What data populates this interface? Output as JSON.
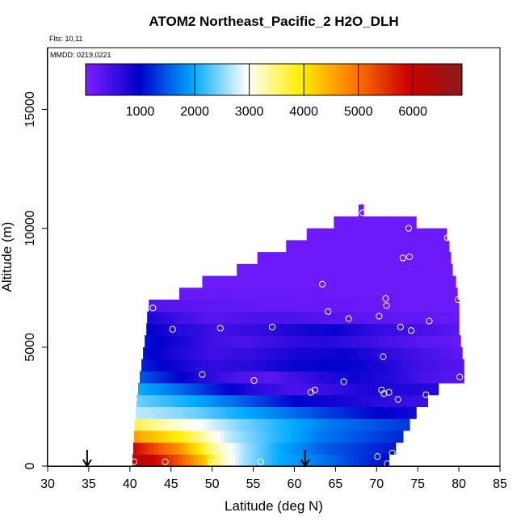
{
  "chart_data": {
    "type": "heatmap",
    "title": "ATOM2 Northeast_Pacific_2 H2O_DLH",
    "flights_text": "Flts: 10,11",
    "dates_text": "MMDD: 0219,0221",
    "xlabel": "Latitude (deg N)",
    "ylabel": "Altitude (m)",
    "xlim": [
      30,
      85
    ],
    "ylim": [
      0,
      17600
    ],
    "x_ticks": [
      "30",
      "35",
      "40",
      "45",
      "50",
      "55",
      "60",
      "65",
      "70",
      "75",
      "80",
      "85"
    ],
    "x_tick_values": [
      30,
      35,
      40,
      45,
      50,
      55,
      60,
      65,
      70,
      75,
      80,
      85
    ],
    "y_ticks": [
      "0",
      "5000",
      "10000",
      "15000"
    ],
    "y_tick_values": [
      0,
      5000,
      10000,
      15000
    ],
    "colorbar": {
      "min": 0,
      "max": 6900,
      "ticks": [
        "1000",
        "2000",
        "3000",
        "4000",
        "5000",
        "6000"
      ],
      "tick_values": [
        1000,
        2000,
        3000,
        4000,
        5000,
        6000
      ],
      "colors": [
        "#7f1fff",
        "#0000cc",
        "#00aaff",
        "#ffffff",
        "#ffee00",
        "#ff7700",
        "#cc0000",
        "#8b1a1a"
      ]
    },
    "cell_height_m": 500,
    "rows": [
      {
        "alt": 250,
        "lat_min": 40.3,
        "lat_max": 71.5,
        "values": [
          [
            40.3,
            6400
          ],
          [
            43,
            5900
          ],
          [
            46,
            5200
          ],
          [
            49,
            4300
          ],
          [
            51,
            3300
          ],
          [
            54,
            2600
          ],
          [
            58,
            2000
          ],
          [
            63,
            1700
          ],
          [
            68,
            1300
          ],
          [
            71.5,
            1000
          ]
        ]
      },
      {
        "alt": 750,
        "lat_min": 40.4,
        "lat_max": 72.3,
        "values": [
          [
            40.4,
            5900
          ],
          [
            43,
            5300
          ],
          [
            46,
            4700
          ],
          [
            48,
            4100
          ],
          [
            50,
            3400
          ],
          [
            54,
            2600
          ],
          [
            58,
            2000
          ],
          [
            64,
            1500
          ],
          [
            72.3,
            1100
          ]
        ]
      },
      {
        "alt": 1250,
        "lat_min": 40.5,
        "lat_max": 73.2,
        "values": [
          [
            40.5,
            4600
          ],
          [
            43,
            4300
          ],
          [
            46,
            3900
          ],
          [
            49,
            3300
          ],
          [
            52,
            2700
          ],
          [
            57,
            2200
          ],
          [
            63,
            1700
          ],
          [
            73.2,
            1200
          ]
        ]
      },
      {
        "alt": 1750,
        "lat_min": 40.6,
        "lat_max": 74.0,
        "values": [
          [
            40.6,
            3700
          ],
          [
            42,
            3500
          ],
          [
            45,
            3200
          ],
          [
            49,
            2900
          ],
          [
            53,
            2500
          ],
          [
            58,
            2100
          ],
          [
            64,
            1700
          ],
          [
            74,
            1300
          ]
        ]
      },
      {
        "alt": 2250,
        "lat_min": 40.7,
        "lat_max": 74.8,
        "values": [
          [
            40.7,
            2700
          ],
          [
            44,
            2600
          ],
          [
            48,
            2400
          ],
          [
            52,
            2100
          ],
          [
            57,
            1800
          ],
          [
            63,
            1400
          ],
          [
            70,
            1000
          ],
          [
            74.8,
            800
          ]
        ]
      },
      {
        "alt": 2750,
        "lat_min": 40.8,
        "lat_max": 76.2,
        "values": [
          [
            40.8,
            2400
          ],
          [
            44,
            2200
          ],
          [
            49,
            1900
          ],
          [
            54,
            1500
          ],
          [
            60,
            1000
          ],
          [
            66,
            800
          ],
          [
            72,
            600
          ],
          [
            76.2,
            500
          ]
        ]
      },
      {
        "alt": 3250,
        "lat_min": 41.0,
        "lat_max": 77.5,
        "values": [
          [
            41,
            2000
          ],
          [
            45,
            1700
          ],
          [
            50,
            1200
          ],
          [
            55,
            700
          ],
          [
            60,
            400
          ],
          [
            65,
            600
          ],
          [
            70,
            800
          ],
          [
            77.5,
            700
          ]
        ]
      },
      {
        "alt": 3750,
        "lat_min": 41.2,
        "lat_max": 80.6,
        "values": [
          [
            41.2,
            1500
          ],
          [
            45,
            1100
          ],
          [
            49,
            700
          ],
          [
            53,
            400
          ],
          [
            57,
            300
          ],
          [
            62,
            600
          ],
          [
            67,
            900
          ],
          [
            72,
            700
          ],
          [
            76,
            400
          ],
          [
            80.6,
            300
          ]
        ]
      },
      {
        "alt": 4250,
        "lat_min": 41.4,
        "lat_max": 80.6,
        "values": [
          [
            41.4,
            1200
          ],
          [
            45,
            900
          ],
          [
            50,
            600
          ],
          [
            55,
            700
          ],
          [
            60,
            900
          ],
          [
            65,
            1000
          ],
          [
            70,
            800
          ],
          [
            75,
            500
          ],
          [
            80.6,
            300
          ]
        ]
      },
      {
        "alt": 4750,
        "lat_min": 41.6,
        "lat_max": 80.4,
        "values": [
          [
            41.6,
            1100
          ],
          [
            45,
            800
          ],
          [
            50,
            500
          ],
          [
            55,
            600
          ],
          [
            60,
            800
          ],
          [
            66,
            900
          ],
          [
            72,
            600
          ],
          [
            80.4,
            250
          ]
        ]
      },
      {
        "alt": 5250,
        "lat_min": 41.8,
        "lat_max": 80.2,
        "values": [
          [
            41.8,
            1100
          ],
          [
            46,
            800
          ],
          [
            50,
            500
          ],
          [
            54,
            400
          ],
          [
            59,
            600
          ],
          [
            64,
            700
          ],
          [
            70,
            500
          ],
          [
            75,
            300
          ],
          [
            80.2,
            200
          ]
        ]
      },
      {
        "alt": 5750,
        "lat_min": 42.0,
        "lat_max": 80.0,
        "values": [
          [
            42,
            1000
          ],
          [
            46,
            700
          ],
          [
            51,
            500
          ],
          [
            56,
            600
          ],
          [
            60,
            800
          ],
          [
            65,
            900
          ],
          [
            70,
            600
          ],
          [
            80,
            300
          ]
        ]
      },
      {
        "alt": 6250,
        "lat_min": 42.1,
        "lat_max": 80.0,
        "values": [
          [
            42.1,
            800
          ],
          [
            46,
            500
          ],
          [
            50,
            300
          ],
          [
            55,
            400
          ],
          [
            60,
            400
          ],
          [
            66,
            300
          ],
          [
            80,
            200
          ]
        ]
      },
      {
        "alt": 6750,
        "lat_min": 42.3,
        "lat_max": 80.0,
        "values": [
          [
            42.3,
            350
          ],
          [
            50,
            250
          ],
          [
            60,
            200
          ],
          [
            80,
            150
          ]
        ]
      },
      {
        "alt": 7250,
        "lat_min": 46.0,
        "lat_max": 79.8,
        "values": [
          [
            46,
            200
          ],
          [
            79.8,
            150
          ]
        ]
      },
      {
        "alt": 7750,
        "lat_min": 48.8,
        "lat_max": 79.6,
        "values": [
          [
            48.8,
            150
          ],
          [
            79.6,
            150
          ]
        ]
      },
      {
        "alt": 8250,
        "lat_min": 53.0,
        "lat_max": 79.2,
        "values": [
          [
            53,
            150
          ],
          [
            79.2,
            150
          ]
        ]
      },
      {
        "alt": 8750,
        "lat_min": 55.5,
        "lat_max": 79.0,
        "values": [
          [
            55.5,
            150
          ],
          [
            79,
            150
          ]
        ]
      },
      {
        "alt": 9250,
        "lat_min": 59.0,
        "lat_max": 78.8,
        "values": [
          [
            59,
            150
          ],
          [
            78.8,
            150
          ]
        ]
      },
      {
        "alt": 9750,
        "lat_min": 61.5,
        "lat_max": 78.5,
        "values": [
          [
            61.5,
            150
          ],
          [
            78.5,
            150
          ]
        ]
      },
      {
        "alt": 10250,
        "lat_min": 64.8,
        "lat_max": 74.8,
        "values": [
          [
            64.8,
            150
          ],
          [
            74.8,
            150
          ]
        ]
      },
      {
        "alt": 10750,
        "lat_min": 67.8,
        "lat_max": 68.4,
        "values": [
          [
            67.8,
            150
          ],
          [
            68.4,
            150
          ]
        ]
      }
    ],
    "points": [
      {
        "lat": 40.5,
        "alt": 2800
      },
      {
        "lat": 40.5,
        "alt": 180
      },
      {
        "lat": 44.3,
        "alt": 180
      },
      {
        "lat": 49.9,
        "alt": 180
      },
      {
        "lat": 55.9,
        "alt": 180
      },
      {
        "lat": 42.8,
        "alt": 6650
      },
      {
        "lat": 45.2,
        "alt": 5750
      },
      {
        "lat": 51.0,
        "alt": 5800
      },
      {
        "lat": 57.3,
        "alt": 5850
      },
      {
        "lat": 48.8,
        "alt": 3850
      },
      {
        "lat": 55.1,
        "alt": 3600
      },
      {
        "lat": 62.0,
        "alt": 3100
      },
      {
        "lat": 62.5,
        "alt": 3200
      },
      {
        "lat": 66.0,
        "alt": 3550
      },
      {
        "lat": 63.4,
        "alt": 7650
      },
      {
        "lat": 64.1,
        "alt": 6500
      },
      {
        "lat": 66.6,
        "alt": 6200
      },
      {
        "lat": 68.3,
        "alt": 10650
      },
      {
        "lat": 73.9,
        "alt": 10000
      },
      {
        "lat": 73.2,
        "alt": 8750
      },
      {
        "lat": 74.0,
        "alt": 8800
      },
      {
        "lat": 78.6,
        "alt": 9600
      },
      {
        "lat": 71.1,
        "alt": 7050
      },
      {
        "lat": 71.2,
        "alt": 6750
      },
      {
        "lat": 70.3,
        "alt": 6300
      },
      {
        "lat": 72.9,
        "alt": 5850
      },
      {
        "lat": 74.2,
        "alt": 5700
      },
      {
        "lat": 76.4,
        "alt": 6100
      },
      {
        "lat": 79.9,
        "alt": 7000
      },
      {
        "lat": 70.8,
        "alt": 4600
      },
      {
        "lat": 70.6,
        "alt": 3200
      },
      {
        "lat": 70.9,
        "alt": 3050
      },
      {
        "lat": 71.5,
        "alt": 3100
      },
      {
        "lat": 72.6,
        "alt": 2800
      },
      {
        "lat": 76.0,
        "alt": 3000
      },
      {
        "lat": 80.1,
        "alt": 3750
      },
      {
        "lat": 70.1,
        "alt": 400
      },
      {
        "lat": 71.9,
        "alt": 550
      },
      {
        "lat": 71.3,
        "alt": 100
      }
    ],
    "arrows_lat": [
      34.8,
      61.3
    ]
  }
}
